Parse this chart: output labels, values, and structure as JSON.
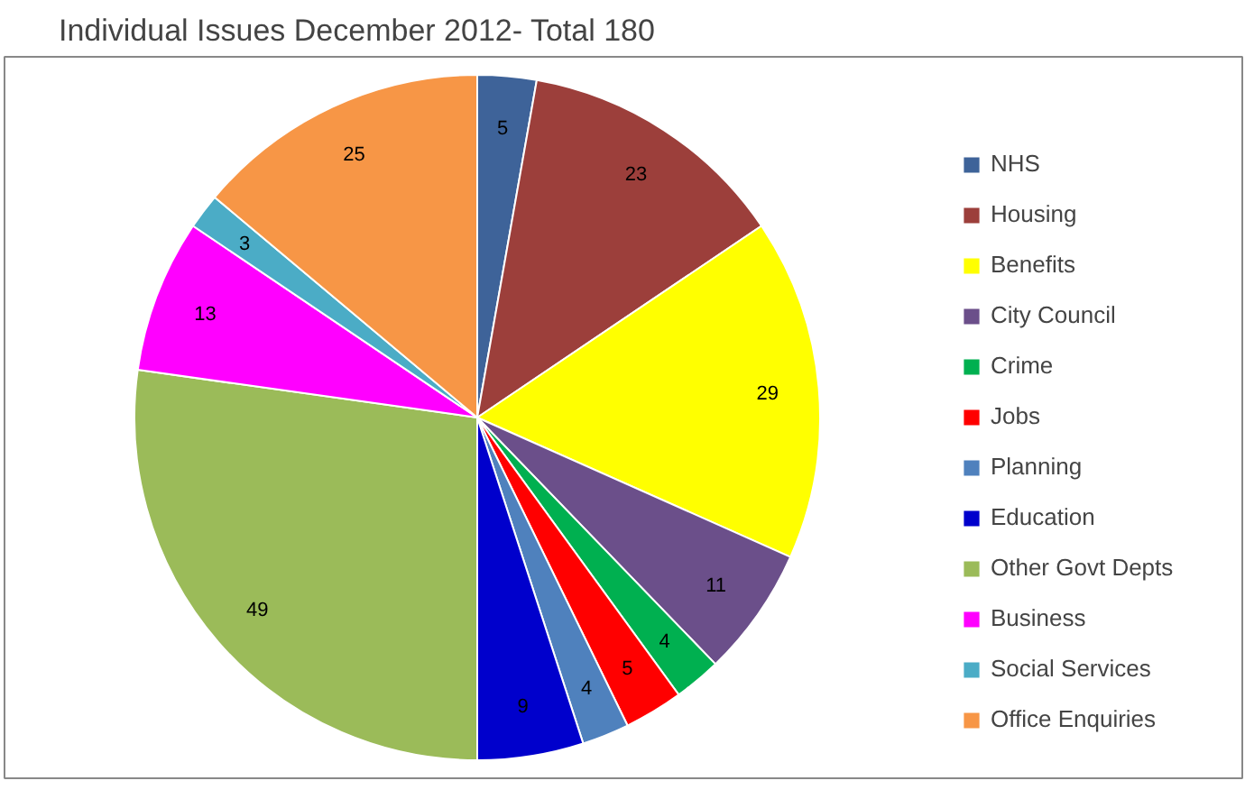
{
  "chart_data": {
    "type": "pie",
    "title": "Individual Issues December 2012- Total 180",
    "categories": [
      "NHS",
      "Housing",
      "Benefits",
      "City Council",
      "Crime",
      "Jobs",
      "Planning",
      "Education",
      "Other Govt Depts",
      "Business",
      "Social Services",
      "Office Enquiries"
    ],
    "values": [
      5,
      23,
      29,
      11,
      4,
      5,
      4,
      9,
      49,
      13,
      3,
      25
    ],
    "colors": [
      "#3e6399",
      "#9c3f3b",
      "#ffff00",
      "#6b4f8a",
      "#00b050",
      "#ff0000",
      "#4f81bd",
      "#0000cc",
      "#9bbb59",
      "#ff00ff",
      "#4bacc6",
      "#f79646"
    ],
    "data_labels": true,
    "legend": "right"
  }
}
